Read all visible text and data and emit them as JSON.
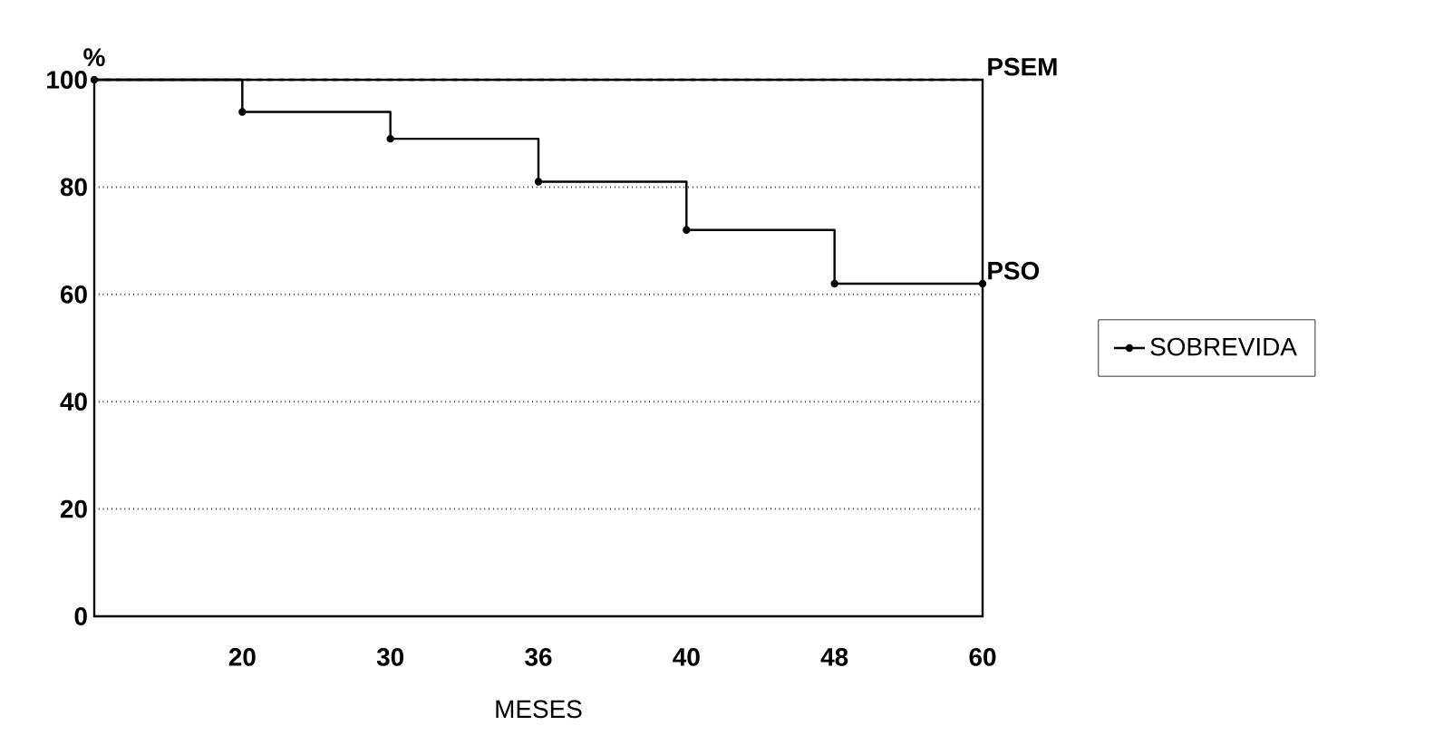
{
  "chart_data": {
    "type": "step",
    "xlabel": "MESES",
    "ylabel": "%",
    "categories": [
      null,
      "20",
      "30",
      "36",
      "40",
      "48",
      "60"
    ],
    "series": [
      {
        "name": "SOBREVIDA",
        "color": "#000000",
        "values": [
          100,
          94,
          89,
          81,
          72,
          62,
          62
        ]
      }
    ],
    "ylim": [
      0,
      100
    ],
    "yticks": [
      0,
      20,
      40,
      60,
      80,
      100
    ],
    "grid": "y",
    "marker": "circle",
    "line_style": "solid",
    "legend": "right",
    "ref_lines": [
      {
        "axis": "y",
        "value": 100,
        "label": "PSEM",
        "line_style": "dashed",
        "color": "#000000"
      }
    ],
    "annotations": [
      {
        "text": "PSO",
        "x": "60",
        "y": 62
      }
    ]
  }
}
